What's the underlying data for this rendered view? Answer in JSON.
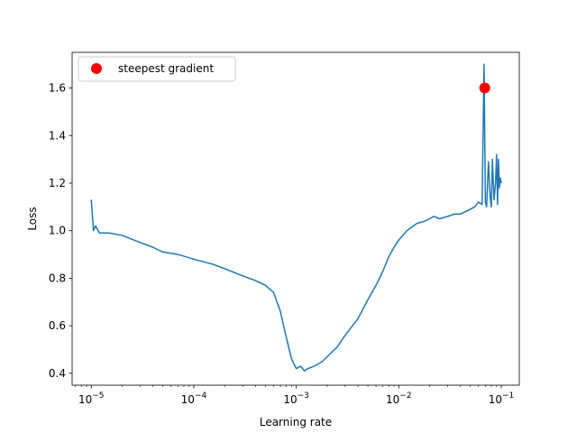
{
  "chart_data": {
    "type": "line",
    "xlabel": "Learning rate",
    "ylabel": "Loss",
    "x_scale": "log",
    "xlim": [
      6.5e-06,
      0.15
    ],
    "ylim": [
      0.35,
      1.75
    ],
    "grid": false,
    "legend_position": "top-left",
    "x_ticks": [
      {
        "value": 1e-05,
        "base": "10",
        "exp": "−5"
      },
      {
        "value": 0.0001,
        "base": "10",
        "exp": "−4"
      },
      {
        "value": 0.001,
        "base": "10",
        "exp": "−3"
      },
      {
        "value": 0.01,
        "base": "10",
        "exp": "−2"
      },
      {
        "value": 0.1,
        "base": "10",
        "exp": "−1"
      }
    ],
    "y_ticks": [
      {
        "value": 0.4,
        "label": "0.4"
      },
      {
        "value": 0.6,
        "label": "0.6"
      },
      {
        "value": 0.8,
        "label": "0.8"
      },
      {
        "value": 1.0,
        "label": "1.0"
      },
      {
        "value": 1.2,
        "label": "1.2"
      },
      {
        "value": 1.4,
        "label": "1.4"
      },
      {
        "value": 1.6,
        "label": "1.6"
      }
    ],
    "series": [
      {
        "color": "#1f77b4",
        "x": [
          1e-05,
          1.05e-05,
          1.1e-05,
          1.2e-05,
          1.5e-05,
          2e-05,
          3e-05,
          4e-05,
          5e-05,
          7e-05,
          0.0001,
          0.00015,
          0.0002,
          0.0003,
          0.0004,
          0.0005,
          0.0006,
          0.0007,
          0.0008,
          0.0009,
          0.001,
          0.0011,
          0.0012,
          0.0013,
          0.0015,
          0.0018,
          0.002,
          0.0025,
          0.003,
          0.004,
          0.005,
          0.006,
          0.007,
          0.008,
          0.009,
          0.01,
          0.012,
          0.015,
          0.018,
          0.02,
          0.022,
          0.025,
          0.03,
          0.035,
          0.04,
          0.045,
          0.05,
          0.055,
          0.06,
          0.065,
          0.068,
          0.07,
          0.072,
          0.075,
          0.078,
          0.08,
          0.082,
          0.085,
          0.088,
          0.09,
          0.092,
          0.094,
          0.096,
          0.098,
          0.1
        ],
        "y": [
          1.13,
          1.0,
          1.02,
          0.99,
          0.99,
          0.98,
          0.95,
          0.93,
          0.91,
          0.9,
          0.88,
          0.86,
          0.84,
          0.81,
          0.79,
          0.77,
          0.74,
          0.66,
          0.55,
          0.46,
          0.42,
          0.43,
          0.41,
          0.42,
          0.43,
          0.45,
          0.47,
          0.51,
          0.56,
          0.63,
          0.71,
          0.77,
          0.83,
          0.89,
          0.93,
          0.96,
          1.0,
          1.03,
          1.04,
          1.05,
          1.06,
          1.05,
          1.06,
          1.07,
          1.07,
          1.08,
          1.09,
          1.1,
          1.12,
          1.11,
          1.7,
          1.12,
          1.1,
          1.29,
          1.14,
          1.1,
          1.3,
          1.13,
          1.2,
          1.32,
          1.11,
          1.3,
          1.18,
          1.22,
          1.2
        ]
      }
    ],
    "markers": [
      {
        "name": "steepest gradient",
        "x": 0.069,
        "y": 1.6,
        "color": "#ff0000"
      }
    ]
  }
}
